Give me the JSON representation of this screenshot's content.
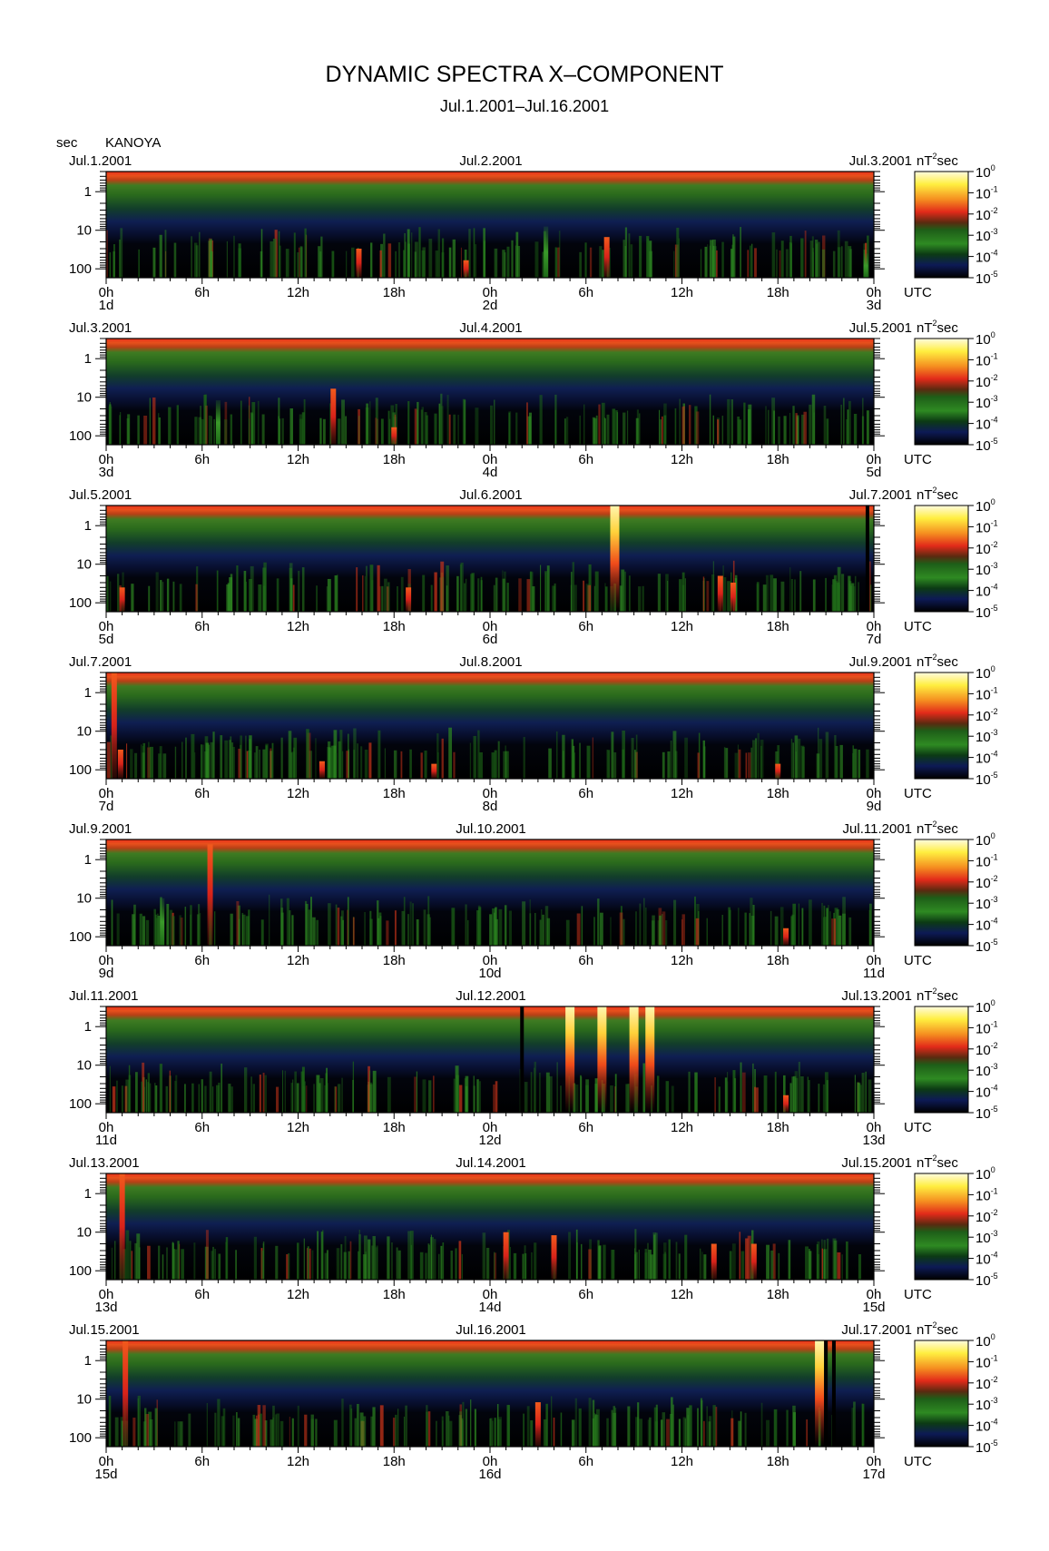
{
  "title": "DYNAMIC SPECTRA X–COMPONENT",
  "subtitle": "Jul.1.2001–Jul.16.2001",
  "y_unit": "sec",
  "station": "KANOYA",
  "time_unit": "UTC",
  "colorbar_unit": "nT",
  "colorbar_unit_exp": "2",
  "colorbar_unit_suffix": "sec",
  "colorbar_ticks": [
    {
      "base": "10",
      "exp": "0"
    },
    {
      "base": "10",
      "exp": "-1"
    },
    {
      "base": "10",
      "exp": "-2"
    },
    {
      "base": "10",
      "exp": "-3"
    },
    {
      "base": "10",
      "exp": "-4"
    },
    {
      "base": "10",
      "exp": "-5"
    }
  ],
  "colors": {
    "black": "#000000",
    "navy": "#0d1a55",
    "dark_green": "#0c4a14",
    "green": "#2e8a22",
    "red": "#d8221a",
    "orange": "#f27a1c",
    "yellow": "#fff03a",
    "pale": "#fff6b0"
  },
  "chart_data": {
    "type": "heatmap",
    "x_ticks": [
      "0h",
      "6h",
      "12h",
      "18h",
      "0h",
      "6h",
      "12h",
      "18h",
      "0h"
    ],
    "y_ticks": [
      "1",
      "10",
      "100"
    ],
    "y_scale": "log",
    "panels": [
      {
        "left_date": "Jul.1.2001",
        "mid_date": "Jul.2.2001",
        "right_date": "Jul.3.2001",
        "day_labels": [
          "1d",
          "2d",
          "3d"
        ],
        "events": [
          {
            "hour": 15.8,
            "period_top": 30,
            "level": "red"
          },
          {
            "hour": 22.5,
            "period_top": 60,
            "level": "red"
          },
          {
            "hour": 27.5,
            "period_top": 8,
            "level": "green"
          },
          {
            "hour": 31.3,
            "period_top": 15,
            "level": "red"
          },
          {
            "hour": 47.5,
            "period_top": 40,
            "level": "green"
          }
        ]
      },
      {
        "left_date": "Jul.3.2001",
        "mid_date": "Jul.4.2001",
        "right_date": "Jul.5.2001",
        "day_labels": [
          "3d",
          "4d",
          "5d"
        ],
        "events": [
          {
            "hour": 14.2,
            "period_top": 6,
            "level": "red"
          },
          {
            "hour": 18.0,
            "period_top": 60,
            "level": "red"
          },
          {
            "hour": 7.0,
            "period_top": 12,
            "level": "green"
          }
        ]
      },
      {
        "left_date": "Jul.5.2001",
        "mid_date": "Jul.6.2001",
        "right_date": "Jul.7.2001",
        "day_labels": [
          "5d",
          "6d",
          "7d"
        ],
        "events": [
          {
            "hour": 31.8,
            "period_top": 0.3,
            "level": "yellow"
          },
          {
            "hour": 1.0,
            "period_top": 40,
            "level": "red"
          },
          {
            "hour": 18.9,
            "period_top": 40,
            "level": "red"
          },
          {
            "hour": 38.4,
            "period_top": 20,
            "level": "red"
          },
          {
            "hour": 39.2,
            "period_top": 30,
            "level": "red"
          },
          {
            "hour": 47.6,
            "period_top": 0.3,
            "level": "black"
          }
        ]
      },
      {
        "left_date": "Jul.7.2001",
        "mid_date": "Jul.8.2001",
        "right_date": "Jul.9.2001",
        "day_labels": [
          "7d",
          "8d",
          "9d"
        ],
        "events": [
          {
            "hour": 0.5,
            "period_top": 0.3,
            "level": "red"
          },
          {
            "hour": 0.9,
            "period_top": 30,
            "level": "red"
          },
          {
            "hour": 13.5,
            "period_top": 60,
            "level": "red"
          },
          {
            "hour": 20.5,
            "period_top": 70,
            "level": "red"
          },
          {
            "hour": 42.0,
            "period_top": 70,
            "level": "red"
          }
        ]
      },
      {
        "left_date": "Jul.9.2001",
        "mid_date": "Jul.10.2001",
        "right_date": "Jul.11.2001",
        "day_labels": [
          "9d",
          "10d",
          "11d"
        ],
        "events": [
          {
            "hour": 6.5,
            "period_top": 0.4,
            "level": "red"
          },
          {
            "hour": 42.5,
            "period_top": 60,
            "level": "red"
          },
          {
            "hour": 3.5,
            "period_top": 10,
            "level": "green"
          }
        ]
      },
      {
        "left_date": "Jul.11.2001",
        "mid_date": "Jul.12.2001",
        "right_date": "Jul.13.2001",
        "day_labels": [
          "11d",
          "12d",
          "13d"
        ],
        "events": [
          {
            "hour": 26.0,
            "period_top": 0.3,
            "level": "black"
          },
          {
            "hour": 29.0,
            "period_top": 0.3,
            "level": "yellow"
          },
          {
            "hour": 31.0,
            "period_top": 0.3,
            "level": "yellow"
          },
          {
            "hour": 33.0,
            "period_top": 0.3,
            "level": "yellow"
          },
          {
            "hour": 34.0,
            "period_top": 0.3,
            "level": "yellow"
          },
          {
            "hour": 42.5,
            "period_top": 60,
            "level": "red"
          }
        ]
      },
      {
        "left_date": "Jul.13.2001",
        "mid_date": "Jul.14.2001",
        "right_date": "Jul.15.2001",
        "day_labels": [
          "13d",
          "14d",
          "15d"
        ],
        "events": [
          {
            "hour": 1.0,
            "period_top": 0.3,
            "level": "red"
          },
          {
            "hour": 25.0,
            "period_top": 10,
            "level": "red"
          },
          {
            "hour": 28.0,
            "period_top": 12,
            "level": "red"
          },
          {
            "hour": 38.0,
            "period_top": 20,
            "level": "red"
          },
          {
            "hour": 40.5,
            "period_top": 20,
            "level": "red"
          }
        ]
      },
      {
        "left_date": "Jul.15.2001",
        "mid_date": "Jul.16.2001",
        "right_date": "Jul.17.2001",
        "day_labels": [
          "15d",
          "16d",
          "17d"
        ],
        "events": [
          {
            "hour": 44.6,
            "period_top": 0.3,
            "level": "yellow"
          },
          {
            "hour": 45.0,
            "period_top": 0.3,
            "level": "black"
          },
          {
            "hour": 45.5,
            "period_top": 0.3,
            "level": "black"
          },
          {
            "hour": 1.2,
            "period_top": 0.3,
            "level": "red"
          },
          {
            "hour": 27.0,
            "period_top": 12,
            "level": "red"
          }
        ]
      }
    ]
  }
}
